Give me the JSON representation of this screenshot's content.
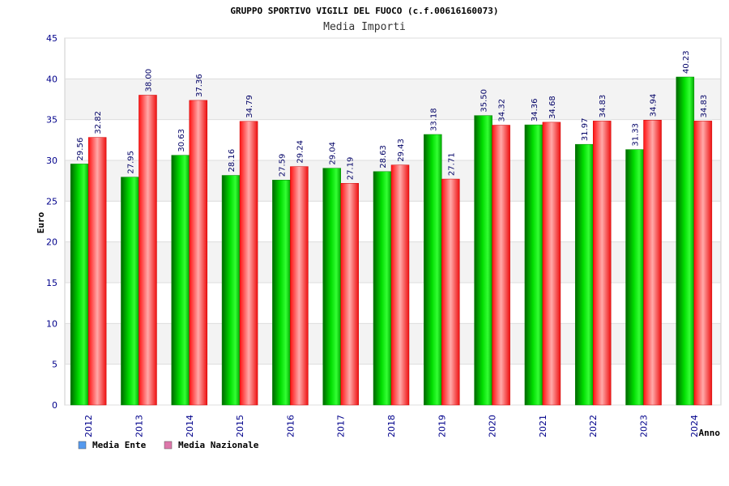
{
  "chart_data": {
    "type": "bar",
    "title": "GRUPPO SPORTIVO VIGILI DEL FUOCO (c.f.00616160073)",
    "subtitle": "Media Importi",
    "xlabel": "Anno",
    "ylabel": "Euro",
    "ylim": [
      0,
      45
    ],
    "yticks": [
      0,
      5,
      10,
      15,
      20,
      25,
      30,
      35,
      40,
      45
    ],
    "grid": true,
    "legend_position": "bottom-left",
    "categories": [
      "2012",
      "2013",
      "2014",
      "2015",
      "2016",
      "2017",
      "2018",
      "2019",
      "2020",
      "2021",
      "2022",
      "2023",
      "2024"
    ],
    "series": [
      {
        "name": "Media Ente",
        "color": "#00cc00",
        "legend_color": "#5599ee",
        "values": [
          29.56,
          27.95,
          30.63,
          28.16,
          27.59,
          29.04,
          28.63,
          33.18,
          35.5,
          34.36,
          31.97,
          31.33,
          40.23
        ],
        "labels": [
          "29.56",
          "27.95",
          "30.63",
          "28.16",
          "27.59",
          "29.04",
          "28.63",
          "33.18",
          "35.50",
          "34.36",
          "31.97",
          "31.33",
          "40.23"
        ]
      },
      {
        "name": "Media Nazionale",
        "color": "#ee1111",
        "legend_color": "#dd77aa",
        "values": [
          32.82,
          38.0,
          37.36,
          34.79,
          29.24,
          27.19,
          29.43,
          27.71,
          34.32,
          34.68,
          34.83,
          34.94,
          34.83
        ],
        "labels": [
          "32.82",
          "38.00",
          "37.36",
          "34.79",
          "29.24",
          "27.19",
          "29.43",
          "27.71",
          "34.32",
          "34.68",
          "34.83",
          "34.94",
          "34.83"
        ]
      }
    ]
  }
}
